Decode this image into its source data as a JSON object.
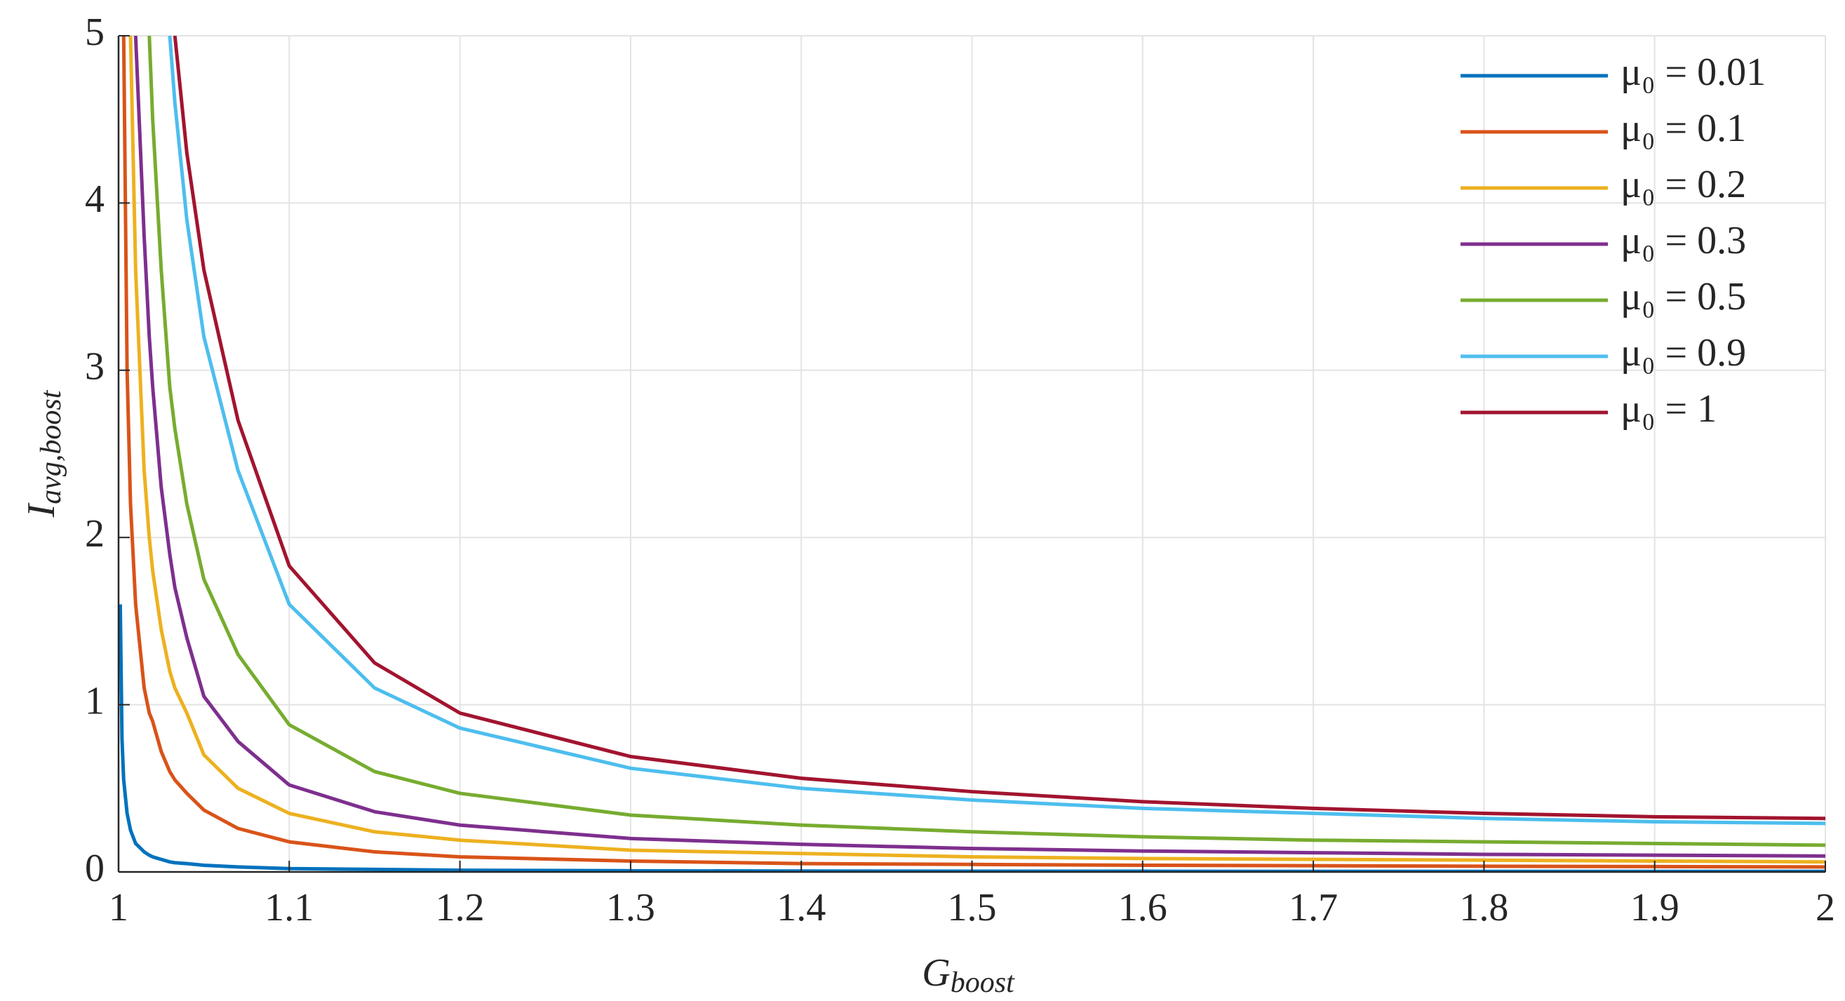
{
  "chart_data": {
    "type": "line",
    "xlabel": {
      "text": "G",
      "subscript": "boost"
    },
    "ylabel": {
      "text": "I",
      "subscript": "avg,boost"
    },
    "x": [
      1.001,
      1.002,
      1.003,
      1.005,
      1.007,
      1.01,
      1.015,
      1.018,
      1.02,
      1.025,
      1.03,
      1.033,
      1.04,
      1.05,
      1.07,
      1.1,
      1.15,
      1.2,
      1.3,
      1.4,
      1.5,
      1.6,
      1.7,
      1.8,
      1.9,
      2
    ],
    "xlim": [
      1,
      2
    ],
    "xticks": [
      1,
      1.1,
      1.2,
      1.3,
      1.4,
      1.5,
      1.6,
      1.7,
      1.8,
      1.9,
      2
    ],
    "ylim": [
      0,
      5
    ],
    "yticks": [
      0,
      1,
      2,
      3,
      4,
      5
    ],
    "grid": true,
    "legend": "upper right",
    "series": [
      {
        "name": "μ₀ = 0.01",
        "color": "#0072bd",
        "values": [
          1.6,
          0.8,
          0.55,
          0.35,
          0.25,
          0.17,
          0.12,
          0.1,
          0.09,
          0.075,
          0.06,
          0.055,
          0.05,
          0.04,
          0.03,
          0.02,
          0.015,
          0.01,
          0.007,
          0.005,
          0.004,
          0.004,
          0.003,
          0.003,
          0.003,
          0.003
        ]
      },
      {
        "name": "μ₀ = 0.1",
        "color": "#d95319",
        "values": [
          null,
          null,
          5,
          3.0,
          2.2,
          1.6,
          1.1,
          0.95,
          0.9,
          0.72,
          0.6,
          0.55,
          0.47,
          0.37,
          0.26,
          0.18,
          0.12,
          0.09,
          0.065,
          0.05,
          0.045,
          0.04,
          0.037,
          0.034,
          0.032,
          0.03
        ]
      },
      {
        "name": "μ₀ = 0.2",
        "color": "#edb120",
        "values": [
          null,
          null,
          null,
          null,
          5,
          3.6,
          2.4,
          2.0,
          1.8,
          1.45,
          1.2,
          1.1,
          0.95,
          0.7,
          0.5,
          0.35,
          0.24,
          0.19,
          0.13,
          0.11,
          0.09,
          0.08,
          0.075,
          0.07,
          0.065,
          0.06
        ]
      },
      {
        "name": "μ₀ = 0.3",
        "color": "#7e2f8e",
        "values": [
          null,
          null,
          null,
          null,
          null,
          5,
          3.8,
          3.2,
          2.9,
          2.3,
          1.9,
          1.7,
          1.4,
          1.05,
          0.78,
          0.52,
          0.36,
          0.28,
          0.2,
          0.165,
          0.14,
          0.125,
          0.115,
          0.105,
          0.1,
          0.095
        ]
      },
      {
        "name": "μ₀ = 0.5",
        "color": "#77ac30",
        "values": [
          null,
          null,
          null,
          null,
          null,
          null,
          null,
          5,
          4.5,
          3.6,
          2.9,
          2.65,
          2.2,
          1.75,
          1.3,
          0.88,
          0.6,
          0.47,
          0.34,
          0.28,
          0.24,
          0.21,
          0.19,
          0.18,
          0.17,
          0.16
        ]
      },
      {
        "name": "μ₀ = 0.9",
        "color": "#4dbeee",
        "values": [
          null,
          null,
          null,
          null,
          null,
          null,
          null,
          null,
          null,
          null,
          5,
          4.6,
          3.9,
          3.2,
          2.4,
          1.6,
          1.1,
          0.86,
          0.62,
          0.5,
          0.43,
          0.38,
          0.35,
          0.32,
          0.3,
          0.29
        ]
      },
      {
        "name": "μ₀ = 1",
        "color": "#a2142f",
        "values": [
          null,
          null,
          null,
          null,
          null,
          null,
          null,
          null,
          null,
          null,
          null,
          5,
          4.3,
          3.6,
          2.7,
          1.83,
          1.25,
          0.95,
          0.69,
          0.56,
          0.48,
          0.42,
          0.38,
          0.35,
          0.33,
          0.32
        ]
      }
    ]
  }
}
